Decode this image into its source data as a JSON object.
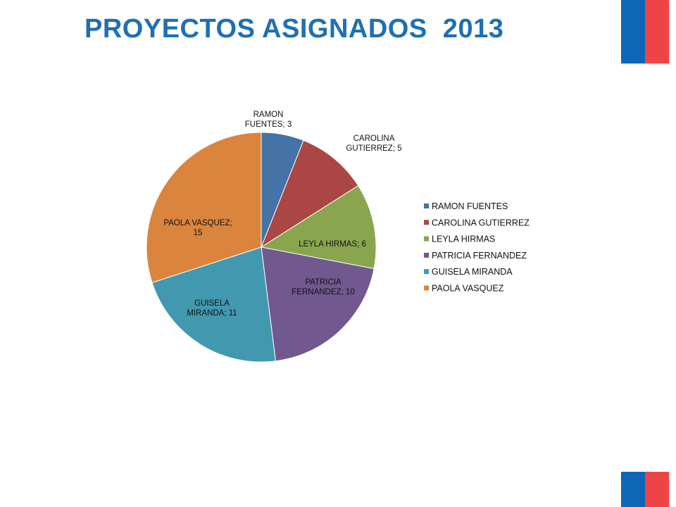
{
  "title": "PROYECTOS ASIGNADOS  2013",
  "colors": {
    "title": "#1f6fb4",
    "flag_blue": "#0f66b6",
    "flag_red": "#ef4446"
  },
  "chart_data": {
    "type": "pie",
    "title": "",
    "legend_position": "right",
    "slices": [
      {
        "name": "RAMON FUENTES",
        "value": 3,
        "color": "#4572a7",
        "label_lines": [
          "RAMON",
          "FUENTES;  3"
        ]
      },
      {
        "name": "CAROLINA GUTIERREZ",
        "value": 5,
        "color": "#aa4643",
        "label_lines": [
          "CAROLINA",
          "GUTIERREZ;  5"
        ]
      },
      {
        "name": "LEYLA HIRMAS",
        "value": 6,
        "color": "#89a54e",
        "label_lines": [
          "LEYLA HIRMAS; 6"
        ]
      },
      {
        "name": "PATRICIA FERNANDEZ",
        "value": 10,
        "color": "#71588f",
        "label_lines": [
          "PATRICIA",
          "FERNANDEZ; 10"
        ]
      },
      {
        "name": "GUISELA MIRANDA",
        "value": 11,
        "color": "#4198af",
        "label_lines": [
          "GUISELA",
          "MIRANDA; 11"
        ]
      },
      {
        "name": "PAOLA VASQUEZ",
        "value": 15,
        "color": "#db843d",
        "label_lines": [
          "PAOLA VASQUEZ;",
          "15"
        ]
      }
    ]
  }
}
